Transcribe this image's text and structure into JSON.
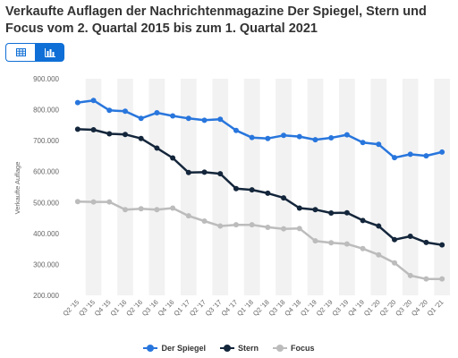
{
  "title": "Verkaufte Auflagen der Nachrichtenmagazine Der Spiegel, Stern und Focus vom 2. Quartal 2015 bis zum 1. Quartal 2021",
  "toggle": {
    "table_icon": "table-icon",
    "chart_icon": "bar-chart-icon",
    "active": "chart"
  },
  "colors": {
    "spiegel": "#2876dd",
    "stern": "#14263b",
    "focus": "#bcbcbc",
    "accent": "#0f6fd6"
  },
  "chart_data": {
    "type": "line",
    "title": "Verkaufte Auflagen der Nachrichtenmagazine Der Spiegel, Stern und Focus vom 2. Quartal 2015 bis zum 1. Quartal 2021",
    "ylabel": "Verkaufte Auflage",
    "xlabel": "",
    "ylim": [
      200000,
      900000
    ],
    "yticks": [
      200000,
      300000,
      400000,
      500000,
      600000,
      700000,
      800000,
      900000
    ],
    "ytick_labels": [
      "200.000",
      "300.000",
      "400.000",
      "500.000",
      "600.000",
      "700.000",
      "800.000",
      "900.000"
    ],
    "grid": "vertical bands",
    "legend": "bottom-center",
    "categories": [
      "Q2 '15",
      "Q3 '15",
      "Q4 '15",
      "Q1 '16",
      "Q2 '16",
      "Q3 '16",
      "Q4 '16",
      "Q1 '17",
      "Q2 '17",
      "Q3 '17",
      "Q4 '17",
      "Q1 '18",
      "Q2 '18",
      "Q3 '18",
      "Q4 '18",
      "Q1 '19",
      "Q2 '19",
      "Q3 '19",
      "Q4 '19",
      "Q1 '20",
      "Q2 '20",
      "Q3 '20",
      "Q4 '20",
      "Q1 '21"
    ],
    "series": [
      {
        "name": "Der Spiegel",
        "values": [
          823000,
          830000,
          798000,
          795000,
          772000,
          790000,
          780000,
          772000,
          766000,
          769000,
          733000,
          710000,
          707000,
          717000,
          713000,
          703000,
          709000,
          719000,
          694000,
          688000,
          645000,
          656000,
          651000,
          663000
        ]
      },
      {
        "name": "Stern",
        "values": [
          737000,
          735000,
          722000,
          720000,
          707000,
          676000,
          644000,
          597000,
          598000,
          593000,
          545000,
          541000,
          530000,
          515000,
          482000,
          477000,
          466000,
          467000,
          442000,
          424000,
          380000,
          391000,
          371000,
          363000
        ]
      },
      {
        "name": "Focus",
        "values": [
          503000,
          502000,
          502000,
          477000,
          480000,
          477000,
          482000,
          457000,
          440000,
          424000,
          428000,
          428000,
          420000,
          415000,
          416000,
          376000,
          370000,
          366000,
          351000,
          331000,
          305000,
          264000,
          253000,
          253000
        ]
      }
    ]
  }
}
